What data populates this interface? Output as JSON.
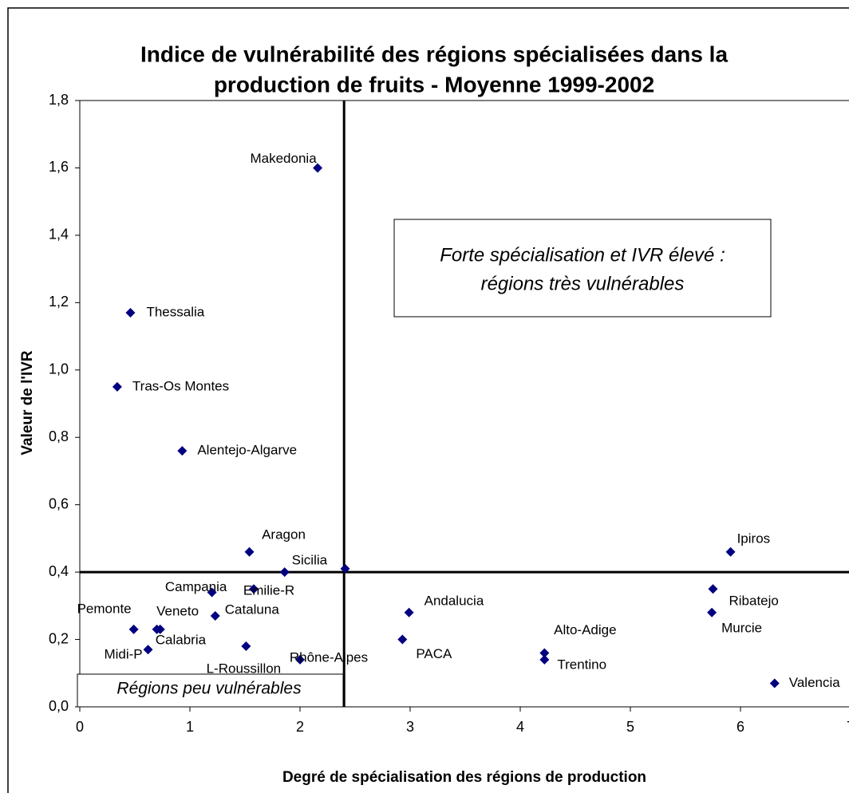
{
  "chart_data": {
    "type": "scatter",
    "title_lines": [
      "Indice de vulnérabilité des régions spécialisées dans la",
      "production de fruits - Moyenne 1999-2002"
    ],
    "xlabel": "Degré de spécialisation des régions de production",
    "ylabel": "Valeur de l'IVR",
    "color": "#000080",
    "xlim": [
      0,
      7
    ],
    "ylim": [
      0,
      1.8
    ],
    "xticks": [
      0,
      1,
      2,
      3,
      4,
      5,
      6,
      7
    ],
    "yticks": [
      {
        "value": 0,
        "label": "0,0"
      },
      {
        "value": 0.2,
        "label": "0,2"
      },
      {
        "value": 0.4,
        "label": "0,4"
      },
      {
        "value": 0.6,
        "label": "0,6"
      },
      {
        "value": 0.8,
        "label": "0,8"
      },
      {
        "value": 1.0,
        "label": "1,0"
      },
      {
        "value": 1.2,
        "label": "1,2"
      },
      {
        "value": 1.4,
        "label": "1,4"
      },
      {
        "value": 1.6,
        "label": "1,6"
      },
      {
        "value": 1.8,
        "label": "1,8"
      }
    ],
    "vline": 2.4,
    "hline": 0.4,
    "labels": [
      "Makedonia",
      "Thessalia",
      "Tras-Os Montes",
      "Alentejo-Algarve",
      "Aragon",
      "Sicilia",
      null,
      "Campania",
      "Emilie-R",
      "Cataluna",
      "Pemonte",
      "Veneto",
      "Calabria",
      "Midi-P",
      "L-Roussillon",
      "Rhône-Alpes",
      "Andalucia",
      "PACA",
      "Alto-Adige",
      "Trentino",
      "Ipiros",
      "Ribatejo",
      "Murcie",
      "Valencia"
    ],
    "x": [
      2.16,
      0.46,
      0.34,
      0.93,
      1.54,
      1.86,
      2.41,
      1.2,
      1.58,
      1.23,
      0.49,
      0.7,
      0.73,
      0.62,
      1.51,
      2.0,
      2.99,
      2.93,
      4.22,
      4.22,
      5.91,
      5.75,
      5.74,
      6.31
    ],
    "y": [
      1.6,
      1.17,
      0.95,
      0.76,
      0.46,
      0.4,
      0.41,
      0.34,
      0.35,
      0.27,
      0.23,
      0.23,
      0.23,
      0.17,
      0.18,
      0.14,
      0.28,
      0.2,
      0.16,
      0.14,
      0.46,
      0.35,
      0.28,
      0.07
    ],
    "annotations": [
      {
        "lines": [
          "Forte spécialisation et IVR élevé :",
          "régions très vulnérables"
        ]
      },
      {
        "lines": [
          "Régions peu vulnérables"
        ]
      }
    ]
  }
}
